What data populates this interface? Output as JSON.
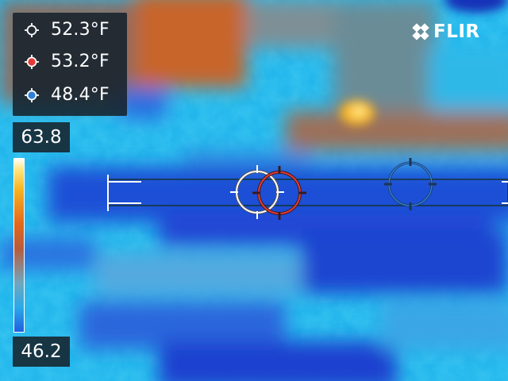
{
  "brand": {
    "logo_text": "FLIR",
    "logo_icon": "flir-diamond-logo"
  },
  "readouts": [
    {
      "id": "spot-1",
      "value": "52.3°F",
      "marker_color": "#ffffff",
      "icon": "crosshair-icon"
    },
    {
      "id": "spot-2",
      "value": "53.2°F",
      "marker_color": "#e53935",
      "icon": "hot-spot-icon"
    },
    {
      "id": "spot-3",
      "value": "48.4°F",
      "marker_color": "#2f7fd8",
      "icon": "cold-spot-icon"
    }
  ],
  "scale": {
    "max": "63.8",
    "min": "46.2",
    "palette": "iron"
  },
  "colors": {
    "panel_bg": "#16222c",
    "hot_marker": "#e53935",
    "cold_marker": "#2f7fd8",
    "center_marker": "#ffffff"
  }
}
